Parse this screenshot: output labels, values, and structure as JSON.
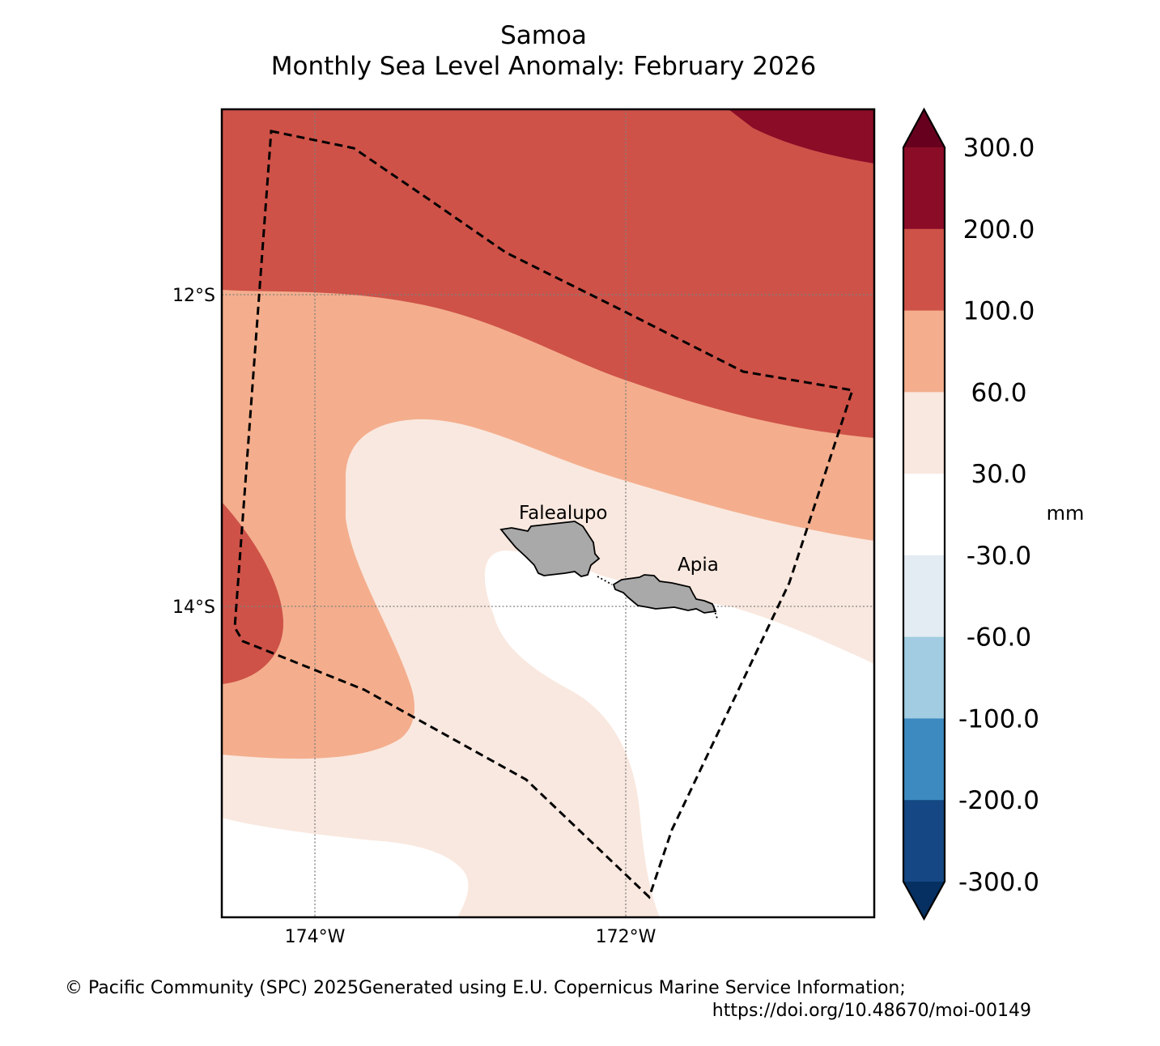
{
  "title": {
    "line1": "Samoa",
    "line2": "Monthly Sea Level Anomaly: February 2026"
  },
  "map": {
    "lat_labels": [
      "12°S",
      "14°S"
    ],
    "lon_labels": [
      "174°W",
      "172°W"
    ],
    "places": [
      {
        "name": "Falealupo",
        "label": "Falealupo"
      },
      {
        "name": "Apia",
        "label": "Apia"
      }
    ],
    "land_color": "#a9a9a9",
    "eez_boundary_style": "dashed black line"
  },
  "colorbar": {
    "unit": "mm",
    "ticks": [
      "300.0",
      "200.0",
      "100.0",
      "60.0",
      "30.0",
      "-30.0",
      "-60.0",
      "-100.0",
      "-200.0",
      "-300.0"
    ],
    "bins": [
      {
        "range": [
          300,
          null
        ],
        "color": "#67001f"
      },
      {
        "range": [
          200,
          300
        ],
        "color": "#8b0c27"
      },
      {
        "range": [
          100,
          200
        ],
        "color": "#ce5248"
      },
      {
        "range": [
          60,
          100
        ],
        "color": "#f4ae8d"
      },
      {
        "range": [
          30,
          60
        ],
        "color": "#f9e8df"
      },
      {
        "range": [
          -30,
          30
        ],
        "color": "#ffffff"
      },
      {
        "range": [
          -60,
          -30
        ],
        "color": "#e4ecf3"
      },
      {
        "range": [
          -100,
          -60
        ],
        "color": "#a1cce1"
      },
      {
        "range": [
          -200,
          -100
        ],
        "color": "#3c8ac0"
      },
      {
        "range": [
          -300,
          -200
        ],
        "color": "#144783"
      },
      {
        "range": [
          null,
          -300
        ],
        "color": "#053061"
      }
    ]
  },
  "footer": {
    "left": "© Pacific Community (SPC) 2025",
    "right_line1": "Generated using E.U. Copernicus Marine Service Information;",
    "right_line2": "https://doi.org/10.48670/moi-00149"
  }
}
